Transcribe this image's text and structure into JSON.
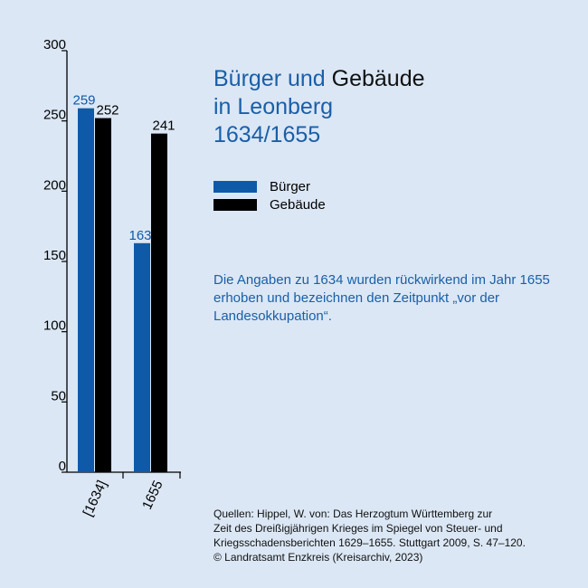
{
  "title": {
    "part1": "Bürger und ",
    "part2": "Gebäude",
    "line2": "in Leonberg",
    "line3": "1634/1655"
  },
  "note": "Die Angaben zu 1634 wurden rückwirkend im Jahr 1655 erhoben und bezeichnen den Zeitpunkt „vor der Landesokkupation“.",
  "sources": [
    "Quellen: Hippel, W. von: Das Herzogtum Württemberg zur",
    "Zeit des Dreißigjährigen Krieges im Spiegel von Steuer- und",
    "Kriegsschadensberichten 1629–1655. Stuttgart 2009, S. 47–120.",
    "© Landratsamt Enzkreis (Kreisarchiv, 2023)"
  ],
  "colors": {
    "buerger": "#0f5aa8",
    "gebaeude": "#000000",
    "background": "#dbe7f5",
    "accent_text": "#1a5fa8"
  },
  "chart_data": {
    "type": "bar",
    "categories": [
      "[1634]",
      "1655"
    ],
    "series": [
      {
        "name": "Bürger",
        "values": [
          259,
          163
        ],
        "color": "#0f5aa8"
      },
      {
        "name": "Gebäude",
        "values": [
          252,
          241
        ],
        "color": "#000000"
      }
    ],
    "ylim": [
      0,
      300
    ],
    "yticks": [
      "0",
      "50",
      "100",
      "150",
      "200",
      "250",
      "300"
    ],
    "legend": "right",
    "grid": false,
    "data_labels": true
  }
}
